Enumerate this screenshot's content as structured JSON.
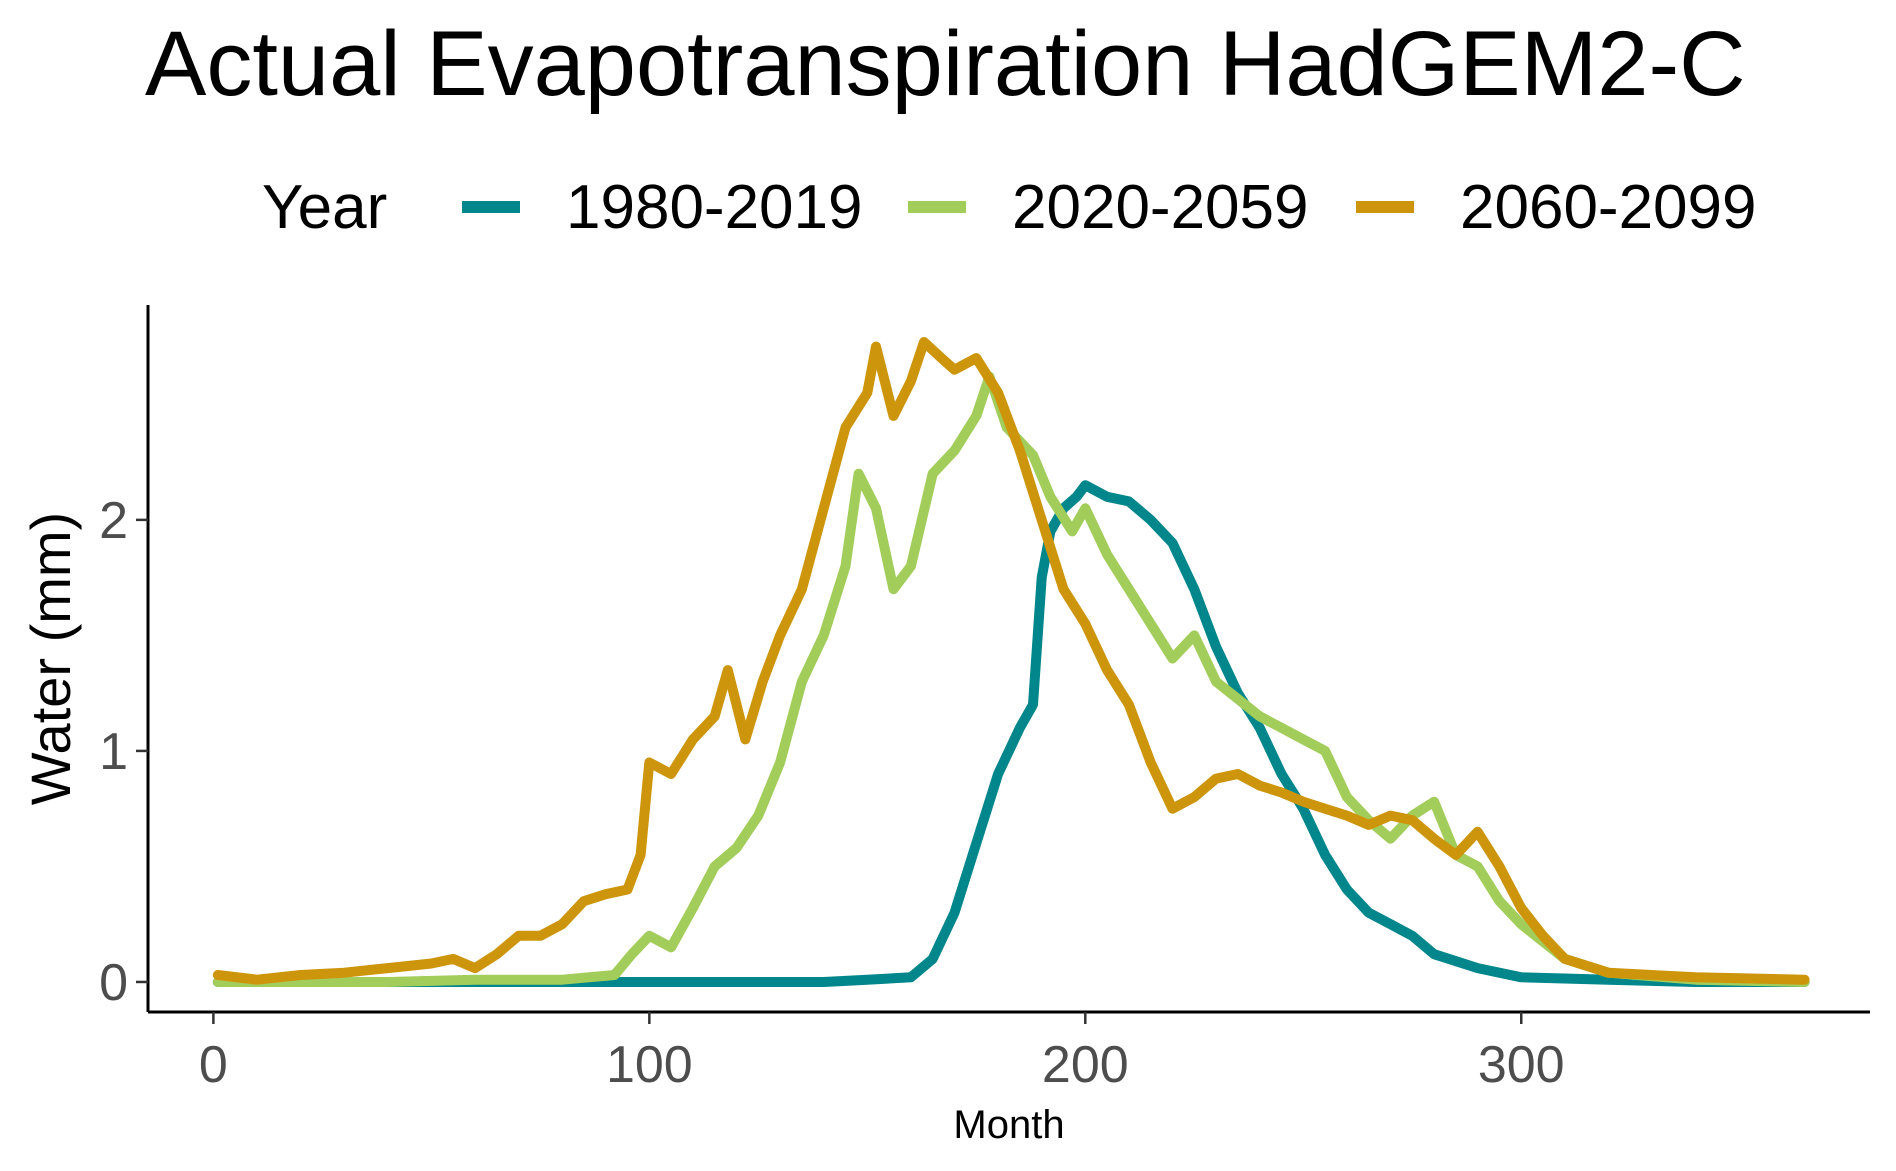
{
  "chart_data": {
    "type": "line",
    "title": "Actual Evapotranspiration HadGEM2-C",
    "xlabel": "Month",
    "ylabel": "Water (mm)",
    "xlim": [
      -15,
      380
    ],
    "ylim": [
      -0.13,
      2.93
    ],
    "x_ticks": [
      0,
      100,
      200,
      300
    ],
    "y_ticks": [
      0,
      1,
      2
    ],
    "grid": false,
    "legend": {
      "title": "Year",
      "position": "top"
    },
    "series": [
      {
        "name": "1980-2019",
        "color": "#00868B",
        "x": [
          1,
          20,
          40,
          60,
          80,
          100,
          120,
          140,
          150,
          160,
          165,
          170,
          175,
          180,
          185,
          188,
          190,
          192,
          195,
          198,
          200,
          205,
          210,
          215,
          220,
          225,
          230,
          235,
          240,
          245,
          250,
          255,
          260,
          265,
          270,
          275,
          280,
          290,
          300,
          320,
          340,
          365
        ],
        "y": [
          0,
          0,
          0,
          0,
          0,
          0,
          0,
          0,
          0.01,
          0.02,
          0.1,
          0.3,
          0.6,
          0.9,
          1.1,
          1.2,
          1.75,
          1.95,
          2.05,
          2.1,
          2.15,
          2.1,
          2.08,
          2.0,
          1.9,
          1.7,
          1.45,
          1.25,
          1.1,
          0.9,
          0.75,
          0.55,
          0.4,
          0.3,
          0.25,
          0.2,
          0.12,
          0.06,
          0.02,
          0.01,
          0,
          0
        ]
      },
      {
        "name": "2020-2059",
        "color": "#A2CD5A",
        "x": [
          1,
          20,
          40,
          60,
          80,
          92,
          96,
          100,
          105,
          110,
          115,
          120,
          125,
          130,
          135,
          140,
          145,
          148,
          152,
          156,
          160,
          165,
          170,
          175,
          178,
          182,
          188,
          192,
          197,
          200,
          205,
          210,
          215,
          220,
          225,
          230,
          240,
          250,
          255,
          260,
          265,
          270,
          275,
          280,
          285,
          290,
          295,
          300,
          310,
          320,
          340,
          365
        ],
        "y": [
          0,
          0,
          0,
          0.01,
          0.01,
          0.03,
          0.12,
          0.2,
          0.15,
          0.32,
          0.5,
          0.58,
          0.72,
          0.95,
          1.3,
          1.5,
          1.8,
          2.2,
          2.05,
          1.7,
          1.8,
          2.2,
          2.3,
          2.45,
          2.62,
          2.4,
          2.28,
          2.1,
          1.95,
          2.05,
          1.85,
          1.7,
          1.55,
          1.4,
          1.5,
          1.3,
          1.15,
          1.05,
          1.0,
          0.8,
          0.7,
          0.62,
          0.72,
          0.78,
          0.55,
          0.5,
          0.35,
          0.25,
          0.1,
          0.04,
          0.01,
          0
        ]
      },
      {
        "name": "2060-2099",
        "color": "#CD950C",
        "x": [
          1,
          10,
          20,
          30,
          40,
          50,
          55,
          60,
          65,
          70,
          75,
          80,
          85,
          90,
          95,
          98,
          100,
          105,
          110,
          115,
          118,
          122,
          126,
          130,
          135,
          140,
          145,
          150,
          152,
          156,
          160,
          163,
          167,
          170,
          175,
          180,
          185,
          190,
          195,
          200,
          205,
          210,
          215,
          220,
          225,
          230,
          235,
          240,
          245,
          250,
          255,
          260,
          265,
          270,
          275,
          280,
          285,
          290,
          295,
          300,
          305,
          310,
          320,
          340,
          365
        ],
        "y": [
          0.03,
          0.01,
          0.03,
          0.04,
          0.06,
          0.08,
          0.1,
          0.06,
          0.12,
          0.2,
          0.2,
          0.25,
          0.35,
          0.38,
          0.4,
          0.55,
          0.95,
          0.9,
          1.05,
          1.15,
          1.35,
          1.05,
          1.3,
          1.5,
          1.7,
          2.05,
          2.4,
          2.55,
          2.75,
          2.45,
          2.6,
          2.77,
          2.7,
          2.65,
          2.7,
          2.55,
          2.3,
          2.0,
          1.7,
          1.55,
          1.35,
          1.2,
          0.95,
          0.75,
          0.8,
          0.88,
          0.9,
          0.85,
          0.82,
          0.78,
          0.75,
          0.72,
          0.68,
          0.72,
          0.7,
          0.62,
          0.55,
          0.65,
          0.5,
          0.32,
          0.2,
          0.1,
          0.04,
          0.02,
          0.01
        ]
      }
    ]
  }
}
